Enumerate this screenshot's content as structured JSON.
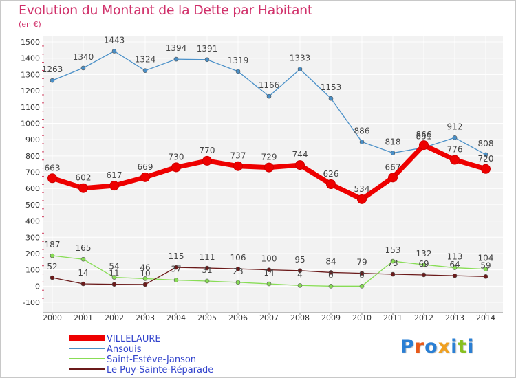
{
  "title": "Evolution du Montant de la Dette par Habitant",
  "unit_label": "(en €)",
  "logo_text": "Proxiti",
  "chart_data": {
    "type": "line",
    "title": "Evolution du Montant de la Dette par Habitant",
    "ylabel": "(en €)",
    "xlabel": "",
    "ylim": [
      -100,
      1500
    ],
    "yticks": [
      -100,
      0,
      100,
      200,
      300,
      400,
      500,
      600,
      700,
      800,
      900,
      1000,
      1100,
      1200,
      1300,
      1400,
      1500
    ],
    "grid": true,
    "legend_position": "bottom-left",
    "categories": [
      "2000",
      "2001",
      "2002",
      "2003",
      "2004",
      "2005",
      "2006",
      "2007",
      "2008",
      "2009",
      "2010",
      "2011",
      "2012",
      "2013",
      "2014"
    ],
    "series": [
      {
        "name": "VILLELAURE",
        "color": "#ee0000",
        "values": [
          663,
          602,
          617,
          669,
          730,
          770,
          737,
          729,
          744,
          626,
          534,
          667,
          866,
          776,
          720
        ]
      },
      {
        "name": "Ansouis",
        "color": "#4a90c8",
        "values": [
          1263,
          1340,
          1443,
          1324,
          1394,
          1391,
          1319,
          1166,
          1333,
          1153,
          886,
          818,
          851,
          912,
          808
        ]
      },
      {
        "name": "Saint-Estève-Janson",
        "color": "#88dd55",
        "values": [
          187,
          165,
          54,
          46,
          37,
          31,
          23,
          14,
          4,
          0,
          0,
          153,
          132,
          113,
          104
        ]
      },
      {
        "name": "Le Puy-Sainte-Réparade",
        "color": "#6b1a1a",
        "values": [
          52,
          14,
          11,
          10,
          115,
          111,
          106,
          100,
          95,
          84,
          79,
          73,
          69,
          64,
          59
        ]
      }
    ]
  }
}
